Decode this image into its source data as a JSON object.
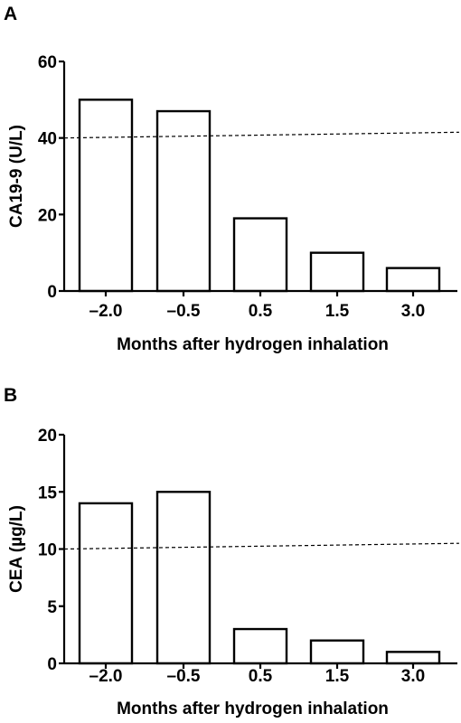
{
  "chart_data": [
    {
      "type": "bar",
      "panel": "A",
      "categories": [
        "–2.0",
        "–0.5",
        "0.5",
        "1.5",
        "3.0"
      ],
      "values": [
        50,
        47,
        19,
        10,
        6
      ],
      "xlabel": "Months after hydrogen inhalation",
      "ylabel": "CA19-9 (U/L)",
      "ylim": [
        0,
        60
      ],
      "yticks": [
        0,
        20,
        40,
        60
      ],
      "threshold": {
        "start": 40,
        "end": 41.5,
        "style": "dashed"
      },
      "grid": false,
      "legend": "none"
    },
    {
      "type": "bar",
      "panel": "B",
      "categories": [
        "–2.0",
        "–0.5",
        "0.5",
        "1.5",
        "3.0"
      ],
      "values": [
        14,
        15,
        3,
        2,
        1
      ],
      "xlabel": "Months after hydrogen inhalation",
      "ylabel": "CEA (µg/L)",
      "ylim": [
        0,
        20
      ],
      "yticks": [
        0,
        5,
        10,
        15,
        20
      ],
      "threshold": {
        "start": 10,
        "end": 10.5,
        "style": "dashed"
      },
      "grid": false,
      "legend": "none"
    }
  ]
}
